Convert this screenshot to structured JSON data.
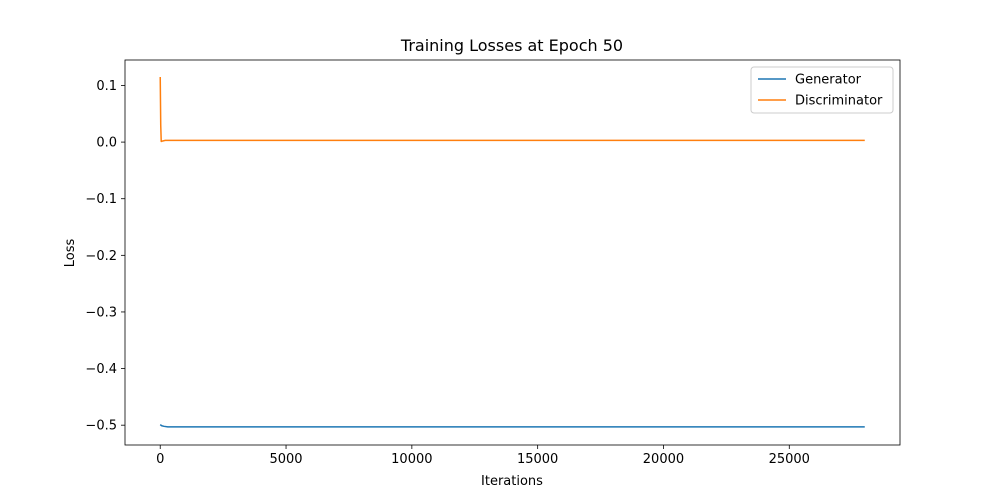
{
  "chart_data": {
    "type": "line",
    "title": "Training Losses at Epoch 50",
    "xlabel": "Iterations",
    "ylabel": "Loss",
    "xlim": [
      -1400,
      29400
    ],
    "ylim": [
      -0.535,
      0.145
    ],
    "xticks": [
      0,
      5000,
      10000,
      15000,
      20000,
      25000
    ],
    "xtick_labels": [
      "0",
      "5000",
      "10000",
      "15000",
      "20000",
      "25000"
    ],
    "yticks": [
      0.1,
      0.0,
      -0.1,
      -0.2,
      -0.3,
      -0.4,
      -0.5
    ],
    "ytick_labels": [
      "0.1",
      "0.0",
      "−0.1",
      "−0.2",
      "−0.3",
      "−0.4",
      "−0.5"
    ],
    "grid": false,
    "legend_position": "top-right",
    "series": [
      {
        "name": "Generator",
        "color": "#1f77b4",
        "x": [
          0,
          60,
          150,
          300,
          600,
          1000,
          2000,
          5000,
          10000,
          15000,
          20000,
          25000,
          28000
        ],
        "y": [
          -0.499,
          -0.501,
          -0.502,
          -0.503,
          -0.503,
          -0.503,
          -0.503,
          -0.503,
          -0.503,
          -0.503,
          -0.503,
          -0.503,
          -0.503
        ]
      },
      {
        "name": "Discriminator",
        "color": "#ff7f0e",
        "x": [
          0,
          20,
          40,
          60,
          100,
          200,
          400,
          1000,
          2000,
          5000,
          10000,
          15000,
          20000,
          25000,
          28000
        ],
        "y": [
          0.115,
          0.03,
          0.001,
          0.0015,
          0.002,
          0.003,
          0.003,
          0.003,
          0.003,
          0.003,
          0.003,
          0.003,
          0.003,
          0.003,
          0.003
        ]
      }
    ]
  }
}
